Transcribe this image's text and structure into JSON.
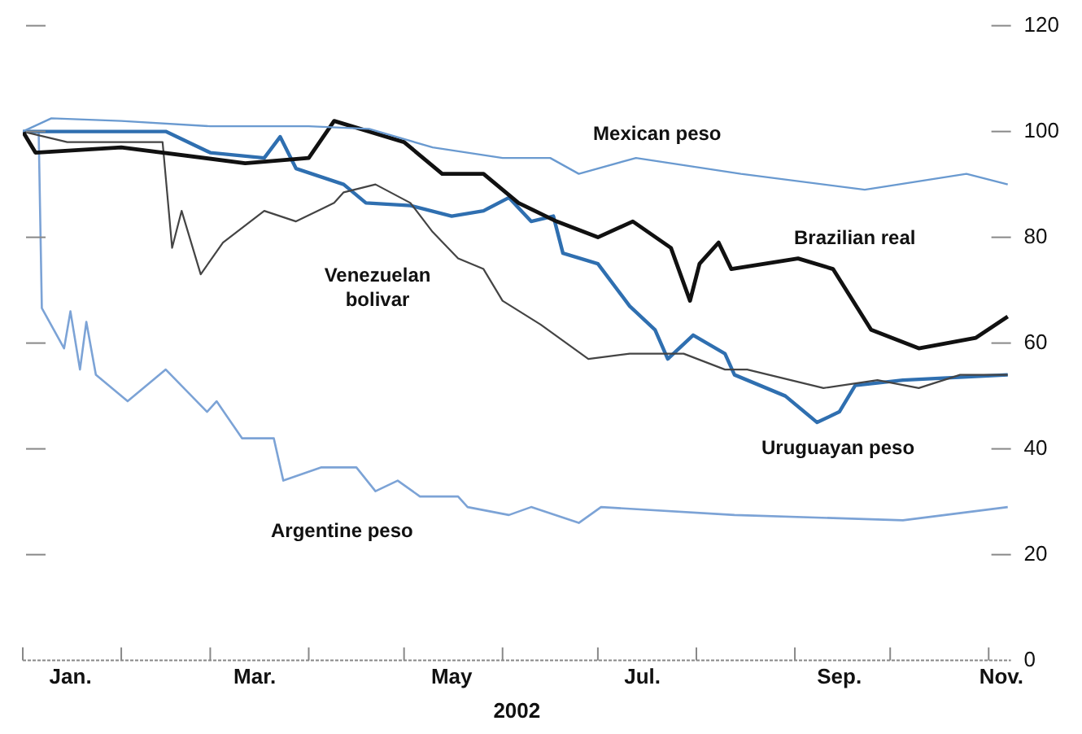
{
  "chart_data": {
    "type": "line",
    "xlabel": "2002",
    "ylim": [
      0,
      120
    ],
    "yticks": [
      0,
      20,
      40,
      60,
      80,
      100,
      120
    ],
    "xlim": [
      "2002-01-01",
      "2002-11-08"
    ],
    "xticks": [
      {
        "value": "2002-01-01",
        "label": null
      },
      {
        "value": "2002-01-16",
        "label": "Jan."
      },
      {
        "value": "2002-02-01",
        "label": null
      },
      {
        "value": "2002-03-01",
        "label": null
      },
      {
        "value": "2002-03-15",
        "label": "Mar."
      },
      {
        "value": "2002-04-01",
        "label": null
      },
      {
        "value": "2002-05-01",
        "label": null
      },
      {
        "value": "2002-05-16",
        "label": "May"
      },
      {
        "value": "2002-06-01",
        "label": null
      },
      {
        "value": "2002-07-01",
        "label": null
      },
      {
        "value": "2002-07-15",
        "label": "Jul."
      },
      {
        "value": "2002-08-01",
        "label": null
      },
      {
        "value": "2002-09-01",
        "label": null
      },
      {
        "value": "2002-09-15",
        "label": "Sep."
      },
      {
        "value": "2002-10-01",
        "label": null
      },
      {
        "value": "2002-11-01",
        "label": null
      },
      {
        "value": "2002-11-05",
        "label": "Nov."
      }
    ],
    "grid": false,
    "legend": false,
    "marker": "none",
    "line_style": "solid",
    "series": [
      {
        "name": "Mexican peso",
        "color": "#6a9ad0",
        "x": [
          "2002-01-01",
          "2002-01-10",
          "2002-02-01",
          "2002-03-01",
          "2002-04-01",
          "2002-04-20",
          "2002-05-10",
          "2002-06-01",
          "2002-06-16",
          "2002-06-25",
          "2002-07-13",
          "2002-08-15",
          "2002-09-23",
          "2002-10-25",
          "2002-11-07"
        ],
        "values": [
          100,
          102.5,
          102,
          101,
          101,
          100.5,
          97,
          95,
          95,
          92,
          95,
          92,
          89,
          92,
          90
        ]
      },
      {
        "name": "Brazilian real",
        "color": "#111111",
        "x": [
          "2002-01-01",
          "2002-01-05",
          "2002-02-01",
          "2002-03-12",
          "2002-04-01",
          "2002-04-09",
          "2002-05-01",
          "2002-05-13",
          "2002-05-26",
          "2002-06-06",
          "2002-06-18",
          "2002-07-01",
          "2002-07-12",
          "2002-07-24",
          "2002-07-30",
          "2002-08-02",
          "2002-08-08",
          "2002-08-12",
          "2002-09-02",
          "2002-09-13",
          "2002-09-25",
          "2002-10-10",
          "2002-10-28",
          "2002-11-07"
        ],
        "values": [
          100,
          96,
          97,
          94,
          95,
          102,
          98,
          92,
          92,
          86.5,
          83,
          80,
          83,
          78,
          68,
          75,
          79,
          74,
          76,
          74,
          62.5,
          59,
          61,
          65
        ]
      },
      {
        "name": "Venezuelan bolivar",
        "color": "#444444",
        "x": [
          "2002-01-01",
          "2002-01-15",
          "2002-02-14",
          "2002-02-17",
          "2002-02-20",
          "2002-02-26",
          "2002-03-05",
          "2002-03-18",
          "2002-03-28",
          "2002-04-09",
          "2002-04-12",
          "2002-04-22",
          "2002-05-03",
          "2002-05-10",
          "2002-05-18",
          "2002-05-26",
          "2002-06-01",
          "2002-06-13",
          "2002-06-28",
          "2002-07-11",
          "2002-07-28",
          "2002-08-10",
          "2002-08-17",
          "2002-09-10",
          "2002-09-27",
          "2002-10-10",
          "2002-10-23",
          "2002-11-07"
        ],
        "values": [
          100,
          98,
          98,
          78,
          85,
          73,
          79,
          85,
          83,
          86.5,
          88.5,
          90,
          86.5,
          81,
          76,
          74,
          68,
          63.5,
          57,
          58,
          58,
          55,
          55,
          51.5,
          53,
          51.5,
          54,
          54
        ]
      },
      {
        "name": "Uruguayan peso",
        "color": "#2f6fb0",
        "x": [
          "2002-01-01",
          "2002-01-20",
          "2002-02-15",
          "2002-03-01",
          "2002-03-18",
          "2002-03-23",
          "2002-03-28",
          "2002-04-12",
          "2002-04-19",
          "2002-05-03",
          "2002-05-16",
          "2002-05-26",
          "2002-06-03",
          "2002-06-10",
          "2002-06-17",
          "2002-06-20",
          "2002-07-01",
          "2002-07-11",
          "2002-07-19",
          "2002-07-23",
          "2002-07-31",
          "2002-08-10",
          "2002-08-13",
          "2002-08-29",
          "2002-09-08",
          "2002-09-15",
          "2002-09-20",
          "2002-10-05",
          "2002-11-07"
        ],
        "values": [
          100,
          100,
          100,
          96,
          95,
          99,
          93,
          90,
          86.5,
          86,
          84,
          85,
          87.5,
          83,
          84,
          77,
          75,
          67,
          62.5,
          57,
          61.5,
          58,
          54,
          50,
          45,
          47,
          52,
          53,
          54
        ]
      },
      {
        "name": "Argentine peso",
        "color": "#7ca3d6",
        "x": [
          "2002-01-01",
          "2002-01-06",
          "2002-01-07",
          "2002-01-14",
          "2002-01-16",
          "2002-01-19",
          "2002-01-21",
          "2002-01-24",
          "2002-02-03",
          "2002-02-15",
          "2002-02-28",
          "2002-03-03",
          "2002-03-11",
          "2002-03-21",
          "2002-03-24",
          "2002-04-05",
          "2002-04-16",
          "2002-04-22",
          "2002-04-29",
          "2002-05-06",
          "2002-05-18",
          "2002-05-21",
          "2002-06-03",
          "2002-06-10",
          "2002-06-25",
          "2002-07-02",
          "2002-08-13",
          "2002-10-05",
          "2002-11-07"
        ],
        "values": [
          100,
          100,
          66.6,
          59,
          66,
          55,
          64,
          54,
          49,
          55,
          47,
          49,
          42,
          42,
          34,
          36.5,
          36.5,
          32,
          34,
          31,
          31,
          29,
          27.5,
          29,
          26,
          29,
          27.5,
          26.5,
          29
        ]
      }
    ]
  }
}
